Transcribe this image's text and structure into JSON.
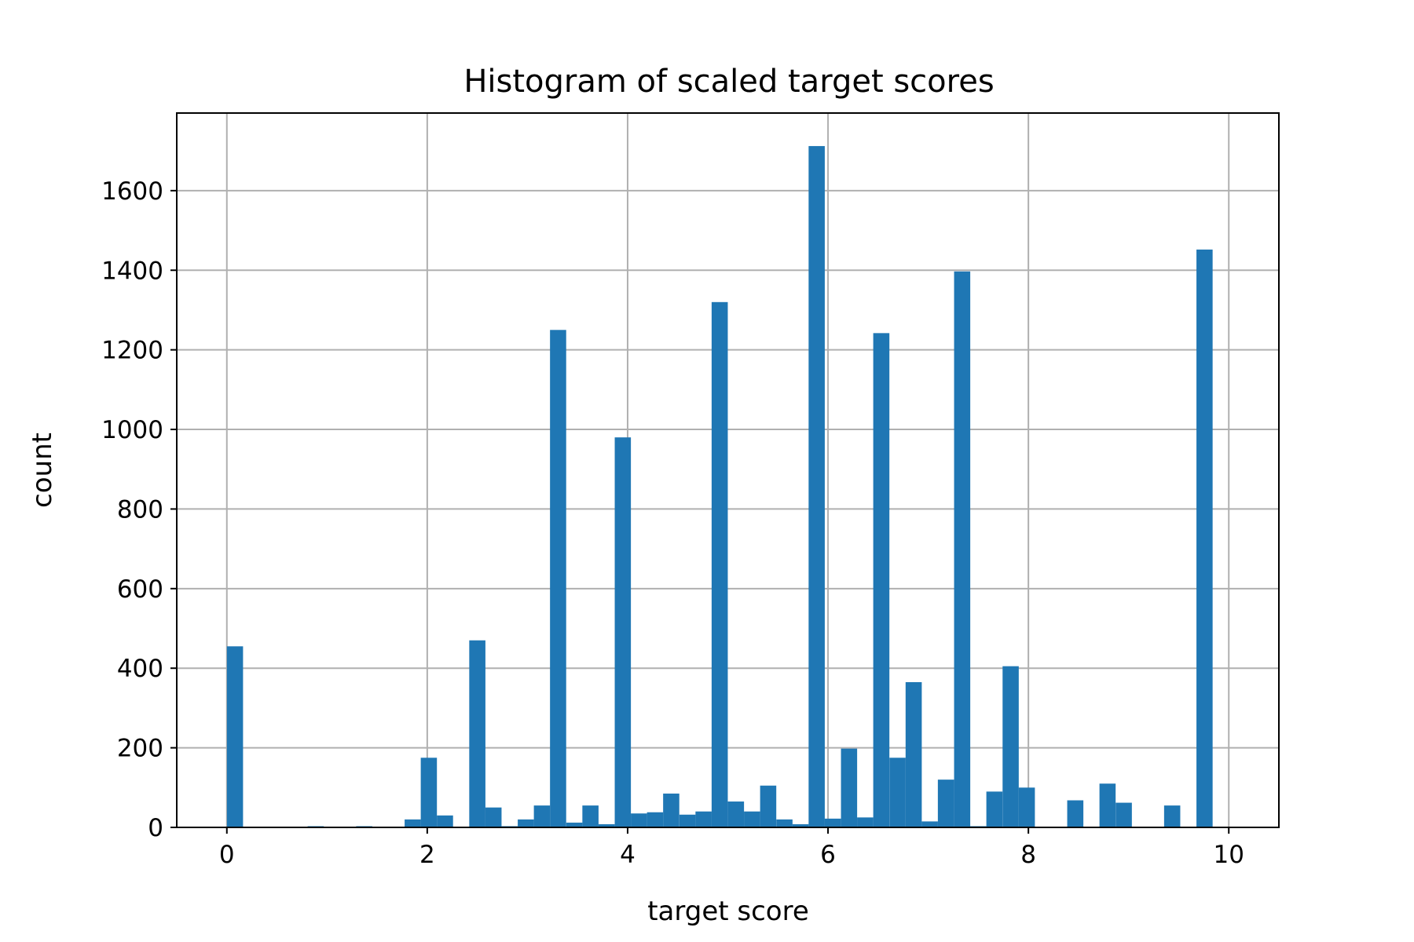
{
  "chart_data": {
    "type": "bar",
    "title": "Histogram of scaled target scores",
    "xlabel": "target score",
    "ylabel": "count",
    "xlim": [
      -0.5,
      10.5
    ],
    "ylim": [
      0,
      1795
    ],
    "grid": true,
    "bar_color": "#1f77b4",
    "bin_width": 0.1613,
    "x_ticks": [
      0,
      2,
      4,
      6,
      8,
      10
    ],
    "y_ticks": [
      0,
      200,
      400,
      600,
      800,
      1000,
      1200,
      1400,
      1600
    ],
    "x": [
      0.081,
      0.242,
      0.403,
      0.565,
      0.726,
      0.887,
      1.048,
      1.21,
      1.371,
      1.532,
      1.694,
      1.855,
      2.016,
      2.177,
      2.339,
      2.5,
      2.661,
      2.823,
      2.984,
      3.145,
      3.306,
      3.468,
      3.629,
      3.79,
      3.952,
      4.113,
      4.274,
      4.435,
      4.597,
      4.758,
      4.919,
      5.081,
      5.242,
      5.403,
      5.565,
      5.726,
      5.887,
      6.048,
      6.21,
      6.371,
      6.532,
      6.694,
      6.855,
      7.016,
      7.177,
      7.339,
      7.5,
      7.661,
      7.823,
      7.984,
      8.145,
      8.306,
      8.468,
      8.629,
      8.79,
      8.952,
      9.113,
      9.274,
      9.435,
      9.597,
      9.758,
      9.919
    ],
    "values": [
      455,
      0,
      0,
      0,
      0,
      3,
      1,
      0,
      3,
      0,
      0,
      20,
      175,
      30,
      0,
      470,
      50,
      3,
      20,
      55,
      1250,
      12,
      55,
      8,
      980,
      35,
      38,
      85,
      32,
      40,
      1320,
      65,
      40,
      105,
      20,
      8,
      1712,
      22,
      198,
      25,
      1242,
      175,
      365,
      15,
      120,
      1397,
      3,
      90,
      405,
      100,
      0,
      0,
      68,
      0,
      110,
      62,
      0,
      0,
      55,
      0,
      1452,
      0
    ]
  }
}
